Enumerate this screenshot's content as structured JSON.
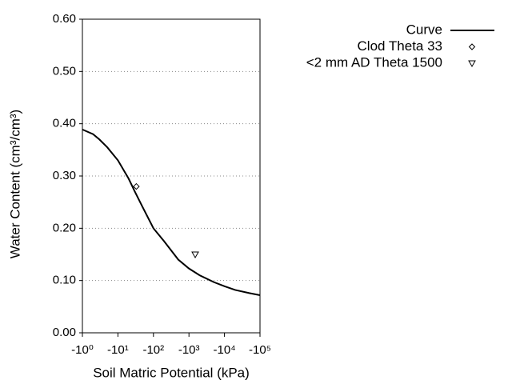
{
  "chart_data": {
    "type": "line",
    "xlabel": "Soil Matric Potential (kPa)",
    "ylabel": "Water Content (cm³/cm³)",
    "xscale": "log",
    "xlim": [
      1,
      100000
    ],
    "xticks": [
      {
        "value": 1,
        "label": "-10⁰"
      },
      {
        "value": 10,
        "label": "-10¹"
      },
      {
        "value": 100,
        "label": "-10²"
      },
      {
        "value": 1000,
        "label": "-10³"
      },
      {
        "value": 10000,
        "label": "-10⁴"
      },
      {
        "value": 100000,
        "label": "-10⁵"
      }
    ],
    "ylim": [
      0,
      0.6
    ],
    "yticks": [
      {
        "value": 0,
        "label": "0.00"
      },
      {
        "value": 0.1,
        "label": "0.10"
      },
      {
        "value": 0.2,
        "label": "0.20"
      },
      {
        "value": 0.3,
        "label": "0.30"
      },
      {
        "value": 0.4,
        "label": "0.40"
      },
      {
        "value": 0.5,
        "label": "0.50"
      },
      {
        "value": 0.6,
        "label": "0.60"
      }
    ],
    "grid": true,
    "legend": "top-right",
    "series": [
      {
        "name": "Curve",
        "style": "line",
        "color": "#000000",
        "x": [
          1,
          2,
          3,
          5,
          10,
          20,
          30,
          50,
          100,
          200,
          500,
          1000,
          2000,
          5000,
          10000,
          20000,
          50000,
          100000
        ],
        "values": [
          0.389,
          0.38,
          0.37,
          0.355,
          0.33,
          0.295,
          0.27,
          0.24,
          0.2,
          0.175,
          0.14,
          0.123,
          0.11,
          0.097,
          0.089,
          0.082,
          0.076,
          0.072
        ]
      },
      {
        "name": "Clod Theta 33",
        "style": "diamond",
        "color": "#000000",
        "x": [
          33
        ],
        "values": [
          0.28
        ]
      },
      {
        "name": "<2 mm AD Theta 1500",
        "style": "triangle-down",
        "color": "#000000",
        "x": [
          1500
        ],
        "values": [
          0.15
        ]
      }
    ]
  }
}
